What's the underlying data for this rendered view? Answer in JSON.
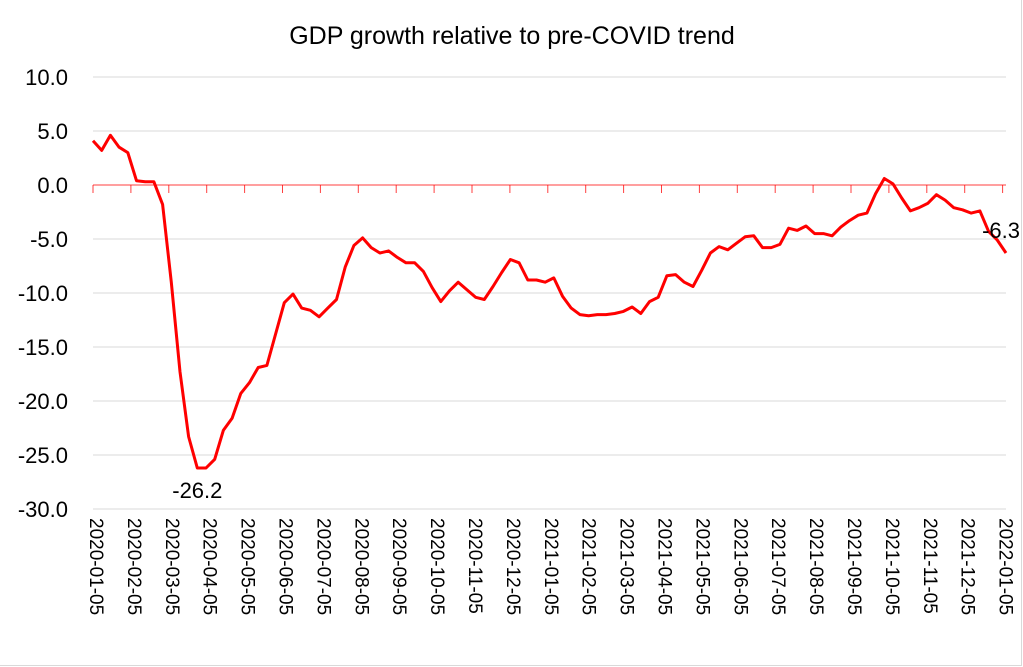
{
  "chart_data": {
    "type": "line",
    "title": "GDP growth relative to pre-COVID trend",
    "xlabel": "",
    "ylabel": "",
    "ylim": [
      -30,
      10
    ],
    "ytick_step": 5,
    "yticks": [
      "10.0",
      "5.0",
      "0.0",
      "-5.0",
      "-10.0",
      "-15.0",
      "-20.0",
      "-25.0",
      "-30.0"
    ],
    "grid": true,
    "legend": "none",
    "x_frequency": "weekly",
    "xtick_labels": [
      "2020-01-05",
      "2020-02-05",
      "2020-03-05",
      "2020-04-05",
      "2020-05-05",
      "2020-06-05",
      "2020-07-05",
      "2020-08-05",
      "2020-09-05",
      "2020-10-05",
      "2020-11-05",
      "2020-12-05",
      "2021-01-05",
      "2021-02-05",
      "2021-03-05",
      "2021-04-05",
      "2021-05-05",
      "2021-06-05",
      "2021-07-05",
      "2021-08-05",
      "2021-09-05",
      "2021-10-05",
      "2021-11-05",
      "2021-12-05",
      "2022-01-05"
    ],
    "series": [
      {
        "name": "GDP growth relative to pre-COVID trend",
        "color": "#ff0000",
        "values": [
          4.1,
          3.2,
          4.6,
          3.5,
          3.0,
          0.4,
          0.3,
          0.3,
          -1.8,
          -9.0,
          -17.3,
          -23.3,
          -26.2,
          -26.2,
          -25.4,
          -22.7,
          -21.6,
          -19.3,
          -18.3,
          -16.9,
          -16.7,
          -13.8,
          -10.9,
          -10.1,
          -11.4,
          -11.6,
          -12.2,
          -11.4,
          -10.6,
          -7.6,
          -5.6,
          -4.9,
          -5.8,
          -6.3,
          -6.1,
          -6.7,
          -7.2,
          -7.2,
          -8.0,
          -9.5,
          -10.8,
          -9.8,
          -9.0,
          -9.7,
          -10.4,
          -10.6,
          -9.4,
          -8.1,
          -6.9,
          -7.2,
          -8.8,
          -8.8,
          -9.0,
          -8.6,
          -10.3,
          -11.4,
          -12.0,
          -12.1,
          -12.0,
          -12.0,
          -11.9,
          -11.7,
          -11.3,
          -11.9,
          -10.8,
          -10.4,
          -8.4,
          -8.3,
          -9.0,
          -9.4,
          -7.9,
          -6.3,
          -5.7,
          -6.0,
          -5.4,
          -4.8,
          -4.7,
          -5.8,
          -5.8,
          -5.5,
          -4.0,
          -4.2,
          -3.8,
          -4.5,
          -4.5,
          -4.7,
          -3.9,
          -3.3,
          -2.8,
          -2.6,
          -0.8,
          0.6,
          0.1,
          -1.2,
          -2.4,
          -2.1,
          -1.7,
          -0.9,
          -1.4,
          -2.1,
          -2.3,
          -2.6,
          -2.4,
          -4.3,
          -5.1,
          -6.3
        ]
      }
    ],
    "annotations": [
      {
        "text": "-26.2",
        "point_index": 12,
        "position": "below"
      },
      {
        "text": "-6.3",
        "point_index": 105,
        "position": "above"
      }
    ]
  }
}
